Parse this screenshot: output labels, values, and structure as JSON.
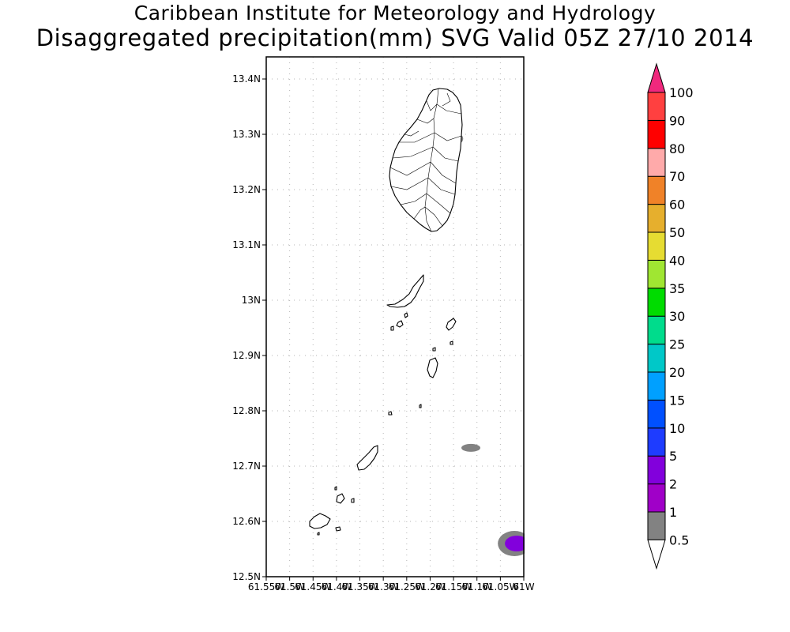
{
  "title": {
    "line1": "Caribbean Institute for Meteorology and Hydrology",
    "line2": "Disaggregated precipitation(mm) SVG Valid 05Z 27/10 2014"
  },
  "map": {
    "lon_range": [
      -61.55,
      -61.0
    ],
    "lat_range": [
      12.5,
      13.44
    ],
    "lat_ticks": [
      {
        "value": 12.5,
        "label": "12.5N"
      },
      {
        "value": 12.6,
        "label": "12.6N"
      },
      {
        "value": 12.7,
        "label": "12.7N"
      },
      {
        "value": 12.8,
        "label": "12.8N"
      },
      {
        "value": 12.9,
        "label": "12.9N"
      },
      {
        "value": 13.0,
        "label": "13N"
      },
      {
        "value": 13.1,
        "label": "13.1N"
      },
      {
        "value": 13.2,
        "label": "13.2N"
      },
      {
        "value": 13.3,
        "label": "13.3N"
      },
      {
        "value": 13.4,
        "label": "13.4N"
      }
    ],
    "lon_ticks": [
      {
        "value": -61.55,
        "label": "61.55W"
      },
      {
        "value": -61.5,
        "label": "61.5W"
      },
      {
        "value": -61.45,
        "label": "61.45W"
      },
      {
        "value": -61.4,
        "label": "61.4W"
      },
      {
        "value": -61.35,
        "label": "61.35W"
      },
      {
        "value": -61.3,
        "label": "61.3W"
      },
      {
        "value": -61.25,
        "label": "61.25W"
      },
      {
        "value": -61.2,
        "label": "61.2W"
      },
      {
        "value": -61.15,
        "label": "61.15W"
      },
      {
        "value": -61.1,
        "label": "61.1W"
      },
      {
        "value": -61.05,
        "label": "61.05W"
      },
      {
        "value": -61.0,
        "label": "61W"
      }
    ],
    "grid": "dotted",
    "precip_areas": [
      {
        "lon": -61.148,
        "lat": 13.292,
        "class": "0.5-1"
      },
      {
        "lon": -61.113,
        "lat": 12.733,
        "class": "0.5-1"
      },
      {
        "lon": -61.02,
        "lat": 12.56,
        "class": "0.5-1"
      },
      {
        "lon": -61.015,
        "lat": 12.56,
        "class": "2-5"
      }
    ]
  },
  "legend": {
    "levels": [
      "0.5",
      "1",
      "2",
      "5",
      "10",
      "15",
      "20",
      "25",
      "30",
      "35",
      "40",
      "50",
      "60",
      "70",
      "80",
      "90",
      "100"
    ],
    "colors": [
      "#ffffff",
      "#828282",
      "#a000c8",
      "#8200dc",
      "#1e3cff",
      "#0050ff",
      "#00a0ff",
      "#00c8c8",
      "#00dc8c",
      "#00dc00",
      "#a0e632",
      "#e6dc32",
      "#e6af2d",
      "#f08228",
      "#ffaaaa",
      "#ff0000",
      "#ff4040",
      "#f0287d"
    ]
  }
}
